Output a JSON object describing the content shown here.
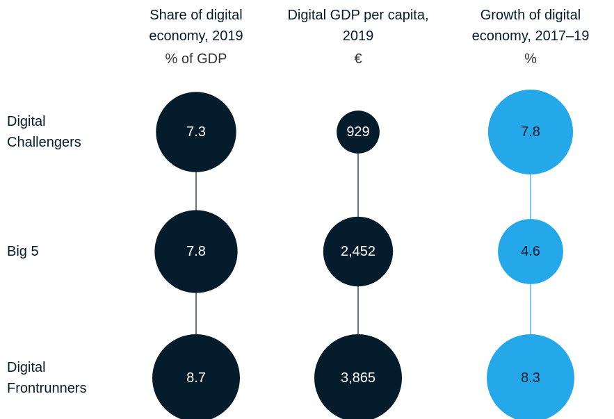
{
  "chart_data": {
    "type": "bubble",
    "categories": [
      "Digital Challengers",
      "Big 5",
      "Digital Frontrunners"
    ],
    "series": [
      {
        "name": "Share of digital economy, 2019",
        "unit": "% of GDP",
        "color": "#051c2c",
        "label_color": "#ffffff",
        "values": [
          7.3,
          7.8,
          8.7
        ]
      },
      {
        "name": "Digital GDP per capita, 2019",
        "unit": "€",
        "color": "#051c2c",
        "label_color": "#ffffff",
        "values": [
          929,
          2452,
          3865
        ],
        "value_labels": [
          "929",
          "2,452",
          "3,865"
        ]
      },
      {
        "name": "Growth of digital economy, 2017–19",
        "unit": "%",
        "color": "#25a8ea",
        "label_color": "#051c2c",
        "values": [
          7.8,
          4.6,
          8.3
        ]
      }
    ]
  }
}
